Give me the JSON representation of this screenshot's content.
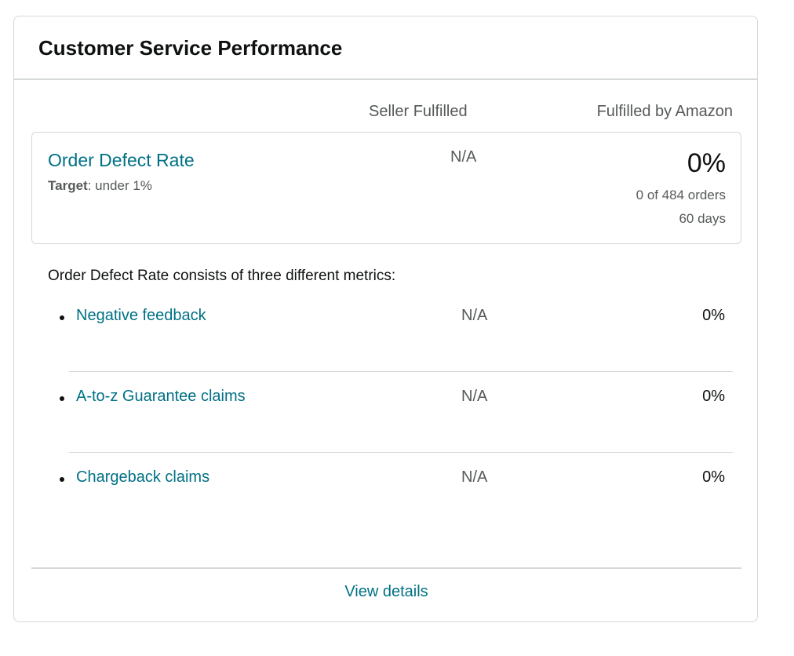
{
  "card": {
    "title": "Customer Service Performance"
  },
  "columns": {
    "seller": "Seller Fulfilled",
    "fba": "Fulfilled by Amazon"
  },
  "odr": {
    "label": "Order Defect Rate",
    "target_label": "Target",
    "target_value": ": under 1%",
    "seller_value": "N/A",
    "fba_value": "0%",
    "orders_text": "0 of 484 orders",
    "period_text": "60 days"
  },
  "intro_text": "Order Defect Rate consists of three different metrics:",
  "metrics": [
    {
      "name": "Negative feedback",
      "seller_value": "N/A",
      "fba_value": "0%"
    },
    {
      "name": "A-to-z Guarantee claims",
      "seller_value": "N/A",
      "fba_value": "0%"
    },
    {
      "name": "Chargeback claims",
      "seller_value": "N/A",
      "fba_value": "0%"
    }
  ],
  "footer": {
    "view_details_label": "View details"
  },
  "colors": {
    "link": "#007185",
    "text": "#0f1111",
    "muted": "#565959",
    "border": "#d5d9d9"
  }
}
